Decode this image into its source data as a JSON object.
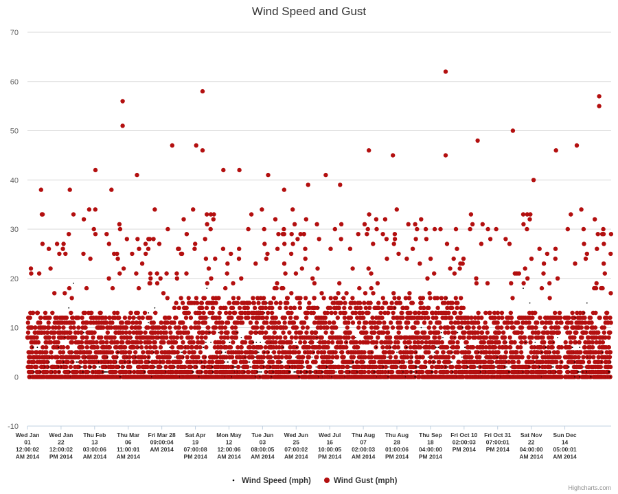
{
  "chart_data": {
    "type": "scatter",
    "title": "Wind Speed and Gust",
    "credits": "Highcharts.com",
    "ylim": [
      -10,
      70
    ],
    "y_ticks": [
      -10,
      0,
      10,
      20,
      30,
      40,
      50,
      60,
      70
    ],
    "grid": true,
    "legend_position": "bottom-center",
    "x_ticks": [
      {
        "lines": [
          "Wed Jan",
          "01",
          "12:00:02",
          "AM 2014"
        ]
      },
      {
        "lines": [
          "Wed Jan",
          "22",
          "12:00:02",
          "PM 2014"
        ]
      },
      {
        "lines": [
          "Thu Feb",
          "13",
          "03:00:06",
          "AM 2014"
        ]
      },
      {
        "lines": [
          "Thu Mar",
          "06",
          "11:00:01",
          "AM 2014"
        ]
      },
      {
        "lines": [
          "Fri Mar 28",
          "09:00:04",
          "AM 2014"
        ]
      },
      {
        "lines": [
          "Sat Apr",
          "19",
          "07:00:08",
          "PM 2014"
        ]
      },
      {
        "lines": [
          "Mon May",
          "12",
          "12:00:06",
          "AM 2014"
        ]
      },
      {
        "lines": [
          "Tue Jun",
          "03",
          "08:00:05",
          "AM 2014"
        ]
      },
      {
        "lines": [
          "Wed Jun",
          "25",
          "07:00:02",
          "AM 2014"
        ]
      },
      {
        "lines": [
          "Wed Jul",
          "16",
          "10:00:05",
          "PM 2014"
        ]
      },
      {
        "lines": [
          "Thu Aug",
          "07",
          "02:00:03",
          "AM 2014"
        ]
      },
      {
        "lines": [
          "Thu Aug",
          "28",
          "01:00:06",
          "PM 2014"
        ]
      },
      {
        "lines": [
          "Thu Sep",
          "18",
          "04:00:00",
          "PM 2014"
        ]
      },
      {
        "lines": [
          "Fri Oct 10",
          "02:00:03",
          "PM 2014"
        ]
      },
      {
        "lines": [
          "Fri Oct 31",
          "07:00:01",
          "PM 2014"
        ]
      },
      {
        "lines": [
          "Sat Nov",
          "22",
          "04:00:00",
          "AM 2014"
        ]
      },
      {
        "lines": [
          "Sun Dec",
          "14",
          "05:00:01",
          "AM 2014"
        ]
      }
    ],
    "series": [
      {
        "name": "Wind Speed (mph)",
        "color": "#000000",
        "marker": "small-dot"
      },
      {
        "name": "Wind Gust (mph)",
        "color": "#b30f0f",
        "marker": "circle"
      }
    ],
    "gust_peaks": [
      {
        "date": "2014-01-09",
        "value": 38
      },
      {
        "date": "2014-01-10",
        "value": 33
      },
      {
        "date": "2014-01-27",
        "value": 38
      },
      {
        "date": "2014-02-12",
        "value": 42
      },
      {
        "date": "2014-02-22",
        "value": 38
      },
      {
        "date": "2014-03-01",
        "value": 56
      },
      {
        "date": "2014-03-01",
        "value": 51
      },
      {
        "date": "2014-03-10",
        "value": 41
      },
      {
        "date": "2014-04-01",
        "value": 47
      },
      {
        "date": "2014-04-16",
        "value": 47
      },
      {
        "date": "2014-04-20",
        "value": 58
      },
      {
        "date": "2014-04-20",
        "value": 46
      },
      {
        "date": "2014-05-03",
        "value": 42
      },
      {
        "date": "2014-05-13",
        "value": 42
      },
      {
        "date": "2014-05-31",
        "value": 41
      },
      {
        "date": "2014-06-10",
        "value": 38
      },
      {
        "date": "2014-06-25",
        "value": 39
      },
      {
        "date": "2014-07-06",
        "value": 41
      },
      {
        "date": "2014-07-15",
        "value": 39
      },
      {
        "date": "2014-08-02",
        "value": 46
      },
      {
        "date": "2014-08-17",
        "value": 45
      },
      {
        "date": "2014-09-19",
        "value": 62
      },
      {
        "date": "2014-09-19",
        "value": 45
      },
      {
        "date": "2014-10-09",
        "value": 48
      },
      {
        "date": "2014-10-31",
        "value": 50
      },
      {
        "date": "2014-11-13",
        "value": 40
      },
      {
        "date": "2014-11-27",
        "value": 46
      },
      {
        "date": "2014-12-10",
        "value": 47
      },
      {
        "date": "2014-12-24",
        "value": 57
      },
      {
        "date": "2014-12-24",
        "value": 55
      }
    ],
    "dense_band": {
      "gust_typical_max": 15,
      "speed_typical_max": 10
    }
  }
}
